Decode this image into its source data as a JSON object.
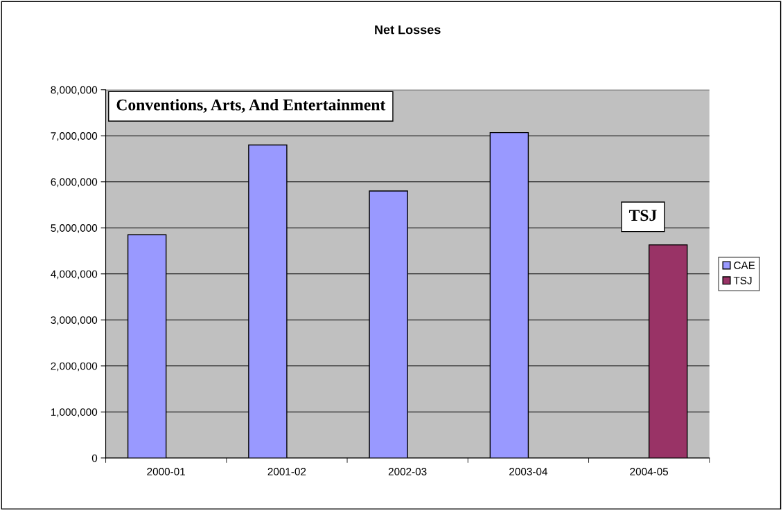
{
  "chart_data": {
    "type": "bar",
    "title": "Net Losses",
    "categories": [
      "2000-01",
      "2001-02",
      "2002-03",
      "2003-04",
      "2004-05"
    ],
    "series": [
      {
        "name": "CAE",
        "color": "#9999ff",
        "values": [
          4850000,
          6800000,
          5800000,
          7070000,
          null
        ]
      },
      {
        "name": "TSJ",
        "color": "#993366",
        "values": [
          null,
          null,
          null,
          null,
          4630000
        ]
      }
    ],
    "ylim": [
      0,
      8000000
    ],
    "yticks": [
      {
        "value": 0,
        "label": "0"
      },
      {
        "value": 1000000,
        "label": "1,000,000"
      },
      {
        "value": 2000000,
        "label": "2,000,000"
      },
      {
        "value": 3000000,
        "label": "3,000,000"
      },
      {
        "value": 4000000,
        "label": "4,000,000"
      },
      {
        "value": 5000000,
        "label": "5,000,000"
      },
      {
        "value": 6000000,
        "label": "6,000,000"
      },
      {
        "value": 7000000,
        "label": "7,000,000"
      },
      {
        "value": 8000000,
        "label": "8,000,000"
      }
    ],
    "grid": "y",
    "legend": "right",
    "annotations": [
      "Conventions, Arts, And Entertainment",
      "TSJ"
    ]
  }
}
